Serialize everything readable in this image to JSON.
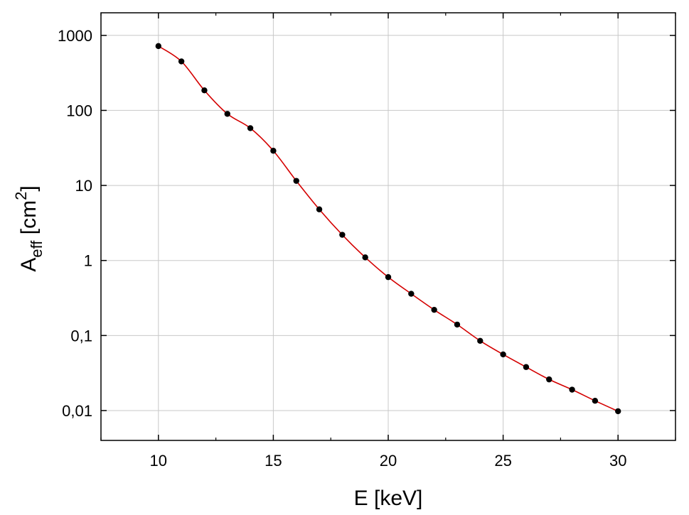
{
  "chart_data": {
    "type": "line",
    "title": "",
    "xlabel": "E [keV]",
    "ylabel": {
      "base": "A",
      "subscript": "eff",
      "bracket_open": " [cm",
      "superscript": "2",
      "bracket_close": "]"
    },
    "xlim": [
      7.5,
      32.5
    ],
    "ylim": [
      0.004,
      2000
    ],
    "yscale": "log",
    "grid": true,
    "legend": "none",
    "x_ticks": [
      10,
      15,
      20,
      25,
      30
    ],
    "x_tick_labels": [
      "10",
      "15",
      "20",
      "25",
      "30"
    ],
    "y_ticks": [
      0.01,
      0.1,
      1,
      10,
      100,
      1000
    ],
    "y_tick_labels": [
      "0,01",
      "0,1",
      "1",
      "10",
      "100",
      "1000"
    ],
    "series": [
      {
        "x": [
          10,
          11,
          12,
          13,
          14,
          15,
          16,
          17,
          18,
          19,
          20,
          21,
          22,
          23,
          24,
          25,
          26,
          27,
          28,
          29,
          30
        ],
        "y": [
          720,
          450,
          185,
          90,
          58,
          29,
          11.5,
          4.8,
          2.2,
          1.1,
          0.6,
          0.36,
          0.22,
          0.14,
          0.085,
          0.056,
          0.038,
          0.026,
          0.019,
          0.0135,
          0.0098
        ],
        "line_color": "#d40000",
        "marker_color": "#000000"
      }
    ]
  }
}
